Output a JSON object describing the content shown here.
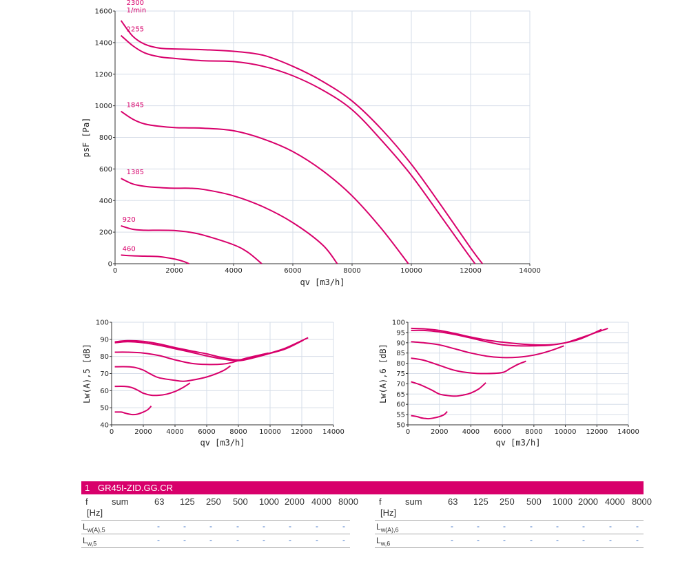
{
  "chart_data": [
    {
      "type": "line",
      "xlabel": "qv [m3/h]",
      "ylabel": "psF [Pa]",
      "xlim": [
        0,
        14000
      ],
      "ylim": [
        0,
        1600
      ],
      "xticks": [
        "0",
        "2000",
        "4000",
        "6000",
        "8000",
        "10000",
        "12000",
        "14000"
      ],
      "yticks": [
        "0",
        "200",
        "400",
        "600",
        "800",
        "1000",
        "1200",
        "1400",
        "1600"
      ],
      "grid": true,
      "color": "#d8006b",
      "unit_label": "1/min",
      "series": [
        {
          "name": "2300",
          "x": [
            200,
            600,
            1000,
            1500,
            2000,
            3000,
            4000,
            5000,
            6000,
            7000,
            8000,
            9000,
            10000,
            11000,
            12000,
            12400
          ],
          "y": [
            1540,
            1440,
            1390,
            1365,
            1360,
            1355,
            1345,
            1320,
            1250,
            1155,
            1030,
            850,
            630,
            370,
            100,
            0
          ]
        },
        {
          "name": "2255",
          "x": [
            200,
            600,
            1000,
            1500,
            2000,
            3000,
            4000,
            5000,
            6000,
            7000,
            8000,
            9000,
            10000,
            11000,
            11800,
            12150
          ],
          "y": [
            1445,
            1380,
            1335,
            1310,
            1300,
            1285,
            1280,
            1250,
            1190,
            1100,
            975,
            780,
            560,
            300,
            90,
            0
          ]
        },
        {
          "name": "1845",
          "x": [
            200,
            600,
            1000,
            1500,
            2000,
            2500,
            3000,
            4000,
            5000,
            6000,
            7000,
            8000,
            9000,
            9900
          ],
          "y": [
            965,
            915,
            885,
            870,
            862,
            860,
            858,
            842,
            790,
            710,
            590,
            430,
            220,
            0
          ]
        },
        {
          "name": "1385",
          "x": [
            200,
            600,
            1000,
            1500,
            2000,
            2500,
            3000,
            4000,
            5000,
            6000,
            7000,
            7500
          ],
          "y": [
            540,
            505,
            490,
            482,
            478,
            478,
            470,
            430,
            360,
            260,
            120,
            0
          ]
        },
        {
          "name": "920",
          "x": [
            200,
            600,
            1000,
            1500,
            2000,
            2500,
            3000,
            4000,
            4500,
            4950
          ],
          "y": [
            240,
            218,
            212,
            212,
            210,
            200,
            180,
            120,
            70,
            0
          ]
        },
        {
          "name": "460",
          "x": [
            200,
            600,
            1000,
            1500,
            2000,
            2300,
            2500
          ],
          "y": [
            55,
            50,
            48,
            45,
            30,
            15,
            0
          ]
        }
      ]
    },
    {
      "type": "line",
      "xlabel": "qv [m3/h]",
      "ylabel": "Lw(A),5 [dB]",
      "xlim": [
        0,
        14000
      ],
      "ylim": [
        40,
        100
      ],
      "xticks": [
        "0",
        "2000",
        "4000",
        "6000",
        "8000",
        "10000",
        "12000",
        "14000"
      ],
      "yticks": [
        "40",
        "50",
        "60",
        "70",
        "80",
        "90",
        "100"
      ],
      "grid": true,
      "color": "#d8006b",
      "series": [
        {
          "x": [
            200,
            1000,
            2000,
            3000,
            4000,
            5000,
            6000,
            7000,
            8000,
            9000,
            10000,
            11000,
            12400
          ],
          "y": [
            88.5,
            89.2,
            88.8,
            87.3,
            85.2,
            83.3,
            81.5,
            79.3,
            78.0,
            79.5,
            82.0,
            85.0,
            91.0
          ]
        },
        {
          "x": [
            200,
            1000,
            2000,
            3000,
            4000,
            5000,
            6000,
            7000,
            8000,
            9000,
            10000,
            11000,
            12100
          ],
          "y": [
            88.0,
            88.6,
            88.0,
            86.5,
            84.5,
            82.5,
            80.3,
            78.5,
            77.5,
            79.3,
            81.8,
            84.5,
            89.5
          ]
        },
        {
          "x": [
            200,
            1000,
            2000,
            3000,
            4000,
            5000,
            6000,
            7000,
            7600,
            8500,
            9900
          ],
          "y": [
            82.5,
            82.5,
            82.0,
            80.5,
            78.0,
            76.0,
            75.3,
            75.5,
            76.5,
            79.0,
            82.0
          ]
        },
        {
          "x": [
            200,
            1000,
            1500,
            2000,
            2500,
            3000,
            4000,
            4500,
            5000,
            6000,
            7000,
            7500
          ],
          "y": [
            74.0,
            74.0,
            73.5,
            72.0,
            69.5,
            67.5,
            66.0,
            65.5,
            66.0,
            68.0,
            71.5,
            74.5
          ]
        },
        {
          "x": [
            200,
            800,
            1200,
            1600,
            2000,
            2500,
            3000,
            3500,
            4000,
            4500,
            4950
          ],
          "y": [
            62.5,
            62.5,
            62.0,
            60.5,
            58.5,
            57.3,
            57.3,
            58.0,
            59.5,
            61.8,
            64.5
          ]
        },
        {
          "x": [
            200,
            600,
            800,
            1000,
            1300,
            1600,
            2000,
            2300,
            2500
          ],
          "y": [
            47.5,
            47.5,
            47.0,
            46.5,
            46.0,
            46.2,
            47.5,
            49.0,
            51.0
          ]
        }
      ]
    },
    {
      "type": "line",
      "xlabel": "qv [m3/h]",
      "ylabel": "Lw(A),6 [dB]",
      "xlim": [
        0,
        14000
      ],
      "ylim": [
        50,
        100
      ],
      "xticks": [
        "0",
        "2000",
        "4000",
        "6000",
        "8000",
        "10000",
        "12000",
        "14000"
      ],
      "yticks": [
        "50",
        "55",
        "60",
        "65",
        "70",
        "75",
        "80",
        "85",
        "90",
        "95",
        "100"
      ],
      "grid": true,
      "color": "#d8006b",
      "series": [
        {
          "x": [
            200,
            1000,
            2000,
            3000,
            4000,
            5000,
            6000,
            7000,
            8000,
            9000,
            10000,
            11000,
            12700
          ],
          "y": [
            97.0,
            96.8,
            96.0,
            94.5,
            92.8,
            91.3,
            90.3,
            89.5,
            89.0,
            89.0,
            90.0,
            92.5,
            97.0
          ]
        },
        {
          "x": [
            200,
            1000,
            2000,
            3000,
            4000,
            5000,
            6000,
            7000,
            8000,
            9000,
            10000,
            11000,
            12300
          ],
          "y": [
            96.0,
            96.0,
            95.3,
            94.0,
            92.3,
            90.5,
            89.0,
            88.5,
            88.5,
            88.8,
            90.0,
            92.0,
            96.5
          ]
        },
        {
          "x": [
            200,
            1000,
            2000,
            3000,
            4000,
            5000,
            6000,
            7000,
            8000,
            9000,
            9900
          ],
          "y": [
            90.5,
            90.0,
            89.0,
            87.0,
            85.0,
            83.5,
            82.8,
            83.0,
            84.0,
            86.0,
            88.5
          ]
        },
        {
          "x": [
            200,
            1000,
            2000,
            3000,
            4000,
            5000,
            6000,
            6500,
            7000,
            7500
          ],
          "y": [
            82.5,
            81.5,
            79.0,
            76.5,
            75.3,
            75.0,
            75.5,
            77.5,
            79.5,
            81.0
          ]
        },
        {
          "x": [
            200,
            800,
            1500,
            2000,
            2500,
            3000,
            3500,
            4000,
            4500,
            4950
          ],
          "y": [
            71.0,
            69.5,
            67.0,
            65.0,
            64.3,
            64.0,
            64.5,
            65.5,
            67.5,
            70.5
          ]
        },
        {
          "x": [
            200,
            600,
            800,
            1000,
            1300,
            1600,
            2000,
            2300,
            2500
          ],
          "y": [
            54.5,
            54.0,
            53.5,
            53.2,
            53.0,
            53.3,
            54.0,
            55.0,
            56.5
          ]
        }
      ]
    }
  ],
  "speed_labels": [
    "2300",
    "1/min",
    "2255",
    "1845",
    "1385",
    "920",
    "460"
  ],
  "table": {
    "index": "1",
    "product": "GR45I-ZID.GG.CR",
    "header": [
      "f",
      "sum",
      "63",
      "125",
      "250",
      "500",
      "1000",
      "2000",
      "4000",
      "8000"
    ],
    "unit": "[Hz]",
    "left_rows": [
      {
        "label": "L",
        "sub": "w(A),5",
        "values": [
          "-",
          "-",
          "-",
          "-",
          "-",
          "-",
          "-",
          "-"
        ]
      },
      {
        "label": "L",
        "sub": "w,5",
        "values": [
          "-",
          "-",
          "-",
          "-",
          "-",
          "-",
          "-",
          "-"
        ]
      }
    ],
    "right_rows": [
      {
        "label": "L",
        "sub": "w(A),6",
        "values": [
          "-",
          "-",
          "-",
          "-",
          "-",
          "-",
          "-",
          "-"
        ]
      },
      {
        "label": "L",
        "sub": "w,6",
        "values": [
          "-",
          "-",
          "-",
          "-",
          "-",
          "-",
          "-",
          "-"
        ]
      }
    ]
  }
}
